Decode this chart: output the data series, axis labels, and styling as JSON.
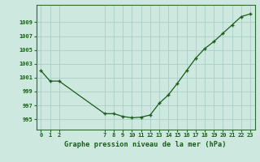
{
  "x": [
    0,
    1,
    2,
    7,
    8,
    9,
    10,
    11,
    12,
    13,
    14,
    15,
    16,
    17,
    18,
    19,
    20,
    21,
    22,
    23
  ],
  "y": [
    1002.0,
    1000.5,
    1000.5,
    995.8,
    995.8,
    995.4,
    995.2,
    995.3,
    995.6,
    997.3,
    998.5,
    1000.2,
    1002.0,
    1003.8,
    1005.2,
    1006.2,
    1007.4,
    1008.6,
    1009.8,
    1010.2
  ],
  "xticks": [
    0,
    1,
    2,
    7,
    8,
    9,
    10,
    11,
    12,
    13,
    14,
    15,
    16,
    17,
    18,
    19,
    20,
    21,
    22,
    23
  ],
  "yticks": [
    995,
    997,
    999,
    1001,
    1003,
    1005,
    1007,
    1009
  ],
  "ylim": [
    993.5,
    1011.5
  ],
  "xlim": [
    -0.5,
    23.5
  ],
  "xlabel": "Graphe pression niveau de la mer (hPa)",
  "line_color": "#1a5c1a",
  "marker_color": "#1a5c1a",
  "bg_color": "#cce8df",
  "grid_color": "#aacfc6",
  "tick_color": "#1a5c1a",
  "spine_color": "#2d6a2d"
}
